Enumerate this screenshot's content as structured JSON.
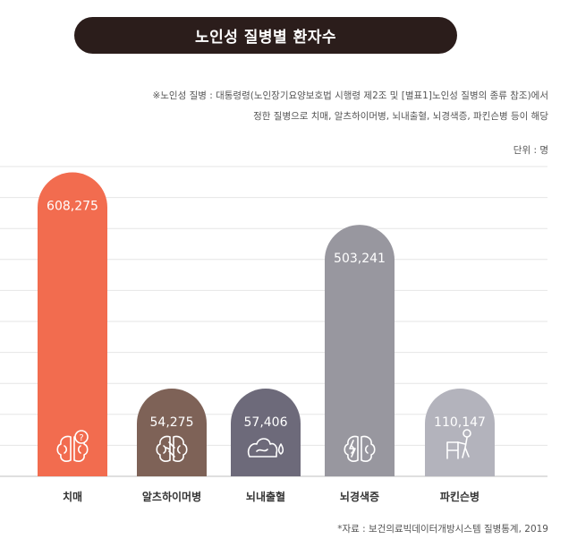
{
  "title": "노인성 질병별 환자수",
  "note_lines": [
    "※노인성 질병 : 대통령령(노인장기요양보호법 시행령 제2조 및 [별표1]노인성 질병의 종류 참조)에서",
    "정한 질병으로 치매, 알츠하이머병, 뇌내출혈, 뇌경색증, 파킨슨병 등이 해당"
  ],
  "unit_label": "단위 : 명",
  "source": "*자료 : 보건의료빅데이터개방시스템 질병통계, 2019",
  "chart_data": {
    "type": "bar",
    "categories": [
      "치매",
      "알츠하이머병",
      "뇌내출혈",
      "뇌경색증",
      "파킨슨병"
    ],
    "values": [
      608275,
      54275,
      57406,
      503241,
      110147
    ],
    "value_labels": [
      "608,275",
      "54,275",
      "57,406",
      "503,241",
      "110,147"
    ],
    "colors": [
      "#f26c4f",
      "#7e6257",
      "#6d6a7a",
      "#98979f",
      "#b3b3bc"
    ],
    "icons": [
      "brain-question-icon",
      "brain-icon",
      "brain-bleeding-icon",
      "brain-lightning-icon",
      "walker-icon"
    ],
    "grid": true
  }
}
